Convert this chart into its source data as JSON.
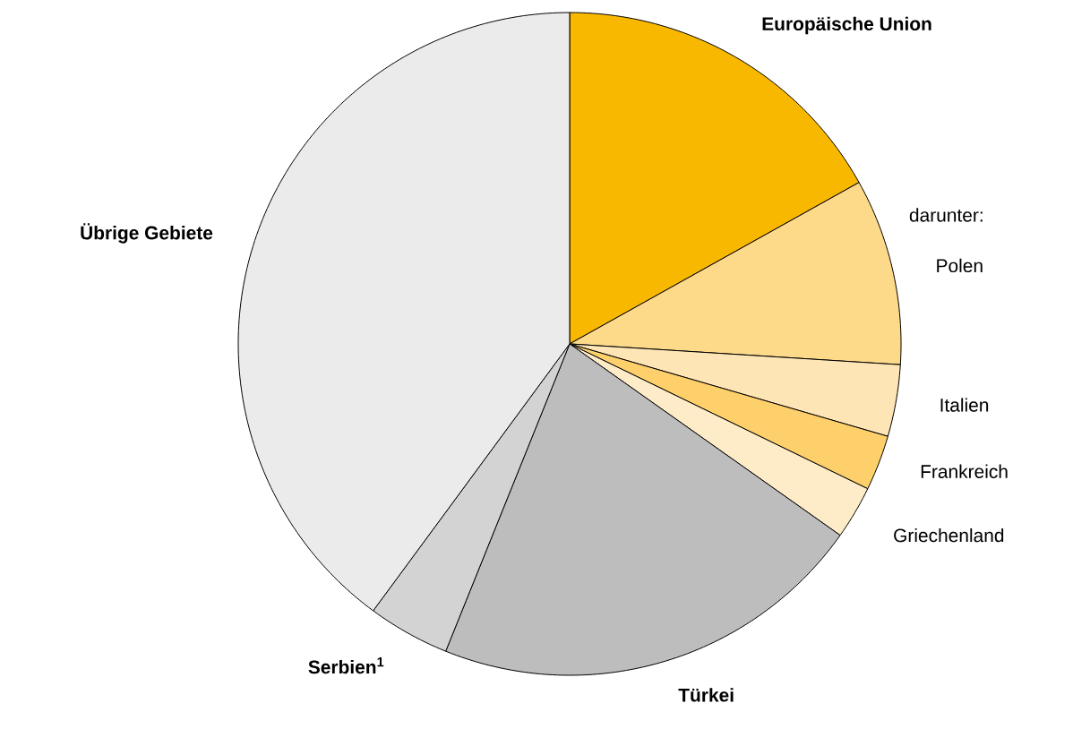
{
  "chart_data": {
    "type": "pie",
    "categories": [
      "Europäische Union",
      "Polen",
      "Italien",
      "Frankreich",
      "Griechenland",
      "Türkei",
      "Serbien$^{1}$",
      "Übrige Gebiete"
    ],
    "values": [
      16.9,
      9.1,
      3.5,
      2.7,
      2.6,
      21.3,
      4.0,
      39.9
    ],
    "colors": [
      "#f9b800",
      "#fdd98a",
      "#fee5b5",
      "#fdd06b",
      "#feebc8",
      "#bdbdbd",
      "#d3d3d3",
      "#ebebeb"
    ],
    "annotations": [
      "darunter:"
    ]
  }
}
